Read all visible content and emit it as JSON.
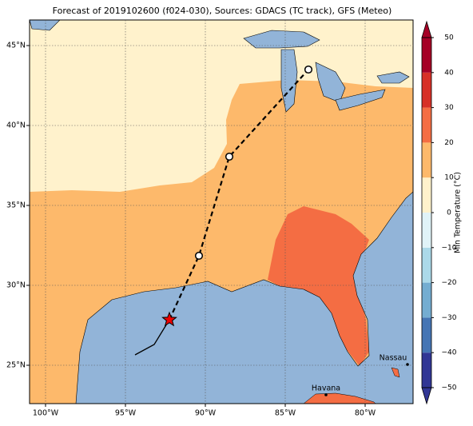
{
  "chart_data": {
    "type": "map",
    "title": "Forecast of 2019102600 (f024-030), Sources: GDACS (TC track), GFS (Meteo)",
    "xlim": [
      -101,
      -77
    ],
    "ylim": [
      22.6,
      46.6
    ],
    "xticks": [
      {
        "value": -100,
        "label": "100°W"
      },
      {
        "value": -95,
        "label": "95°W"
      },
      {
        "value": -90,
        "label": "90°W"
      },
      {
        "value": -85,
        "label": "85°W"
      },
      {
        "value": -80,
        "label": "80°W"
      }
    ],
    "yticks": [
      {
        "value": 25,
        "label": "25°N"
      },
      {
        "value": 30,
        "label": "30°N"
      },
      {
        "value": 35,
        "label": "35°N"
      },
      {
        "value": 40,
        "label": "40°N"
      },
      {
        "value": 45,
        "label": "45°N"
      }
    ],
    "grid": true,
    "past_track": {
      "lon": [
        -94.4,
        -93.2,
        -92.25
      ],
      "lat": [
        25.65,
        26.3,
        27.85
      ]
    },
    "forecast_track": {
      "lon": [
        -92.25,
        -90.4,
        -88.5,
        -83.55
      ],
      "lat": [
        27.85,
        31.85,
        38.05,
        43.5
      ]
    },
    "cities": [
      {
        "name": "Nassau",
        "lon": -77.35,
        "lat": 25.05
      },
      {
        "name": "Havana",
        "lon": -82.45,
        "lat": 23.15
      }
    ],
    "colorbar": {
      "label": "Min Temperature (°C)",
      "lim": [
        -50,
        50
      ],
      "ticks": [
        {
          "value": -50,
          "label": "−50"
        },
        {
          "value": -40,
          "label": "−40"
        },
        {
          "value": -30,
          "label": "−30"
        },
        {
          "value": -20,
          "label": "−20"
        },
        {
          "value": -10,
          "label": "−10"
        },
        0,
        10,
        20,
        30,
        40,
        50
      ],
      "levels": [
        -50,
        -40,
        -30,
        -20,
        -10,
        0,
        10,
        20,
        30,
        40,
        50
      ],
      "colors": [
        "#313695",
        "#4575b4",
        "#74add1",
        "#abd9e9",
        "#e0f3f8",
        "#fff2cc",
        "#fdb96b",
        "#f46d43",
        "#d73027",
        "#a50026"
      ]
    }
  }
}
